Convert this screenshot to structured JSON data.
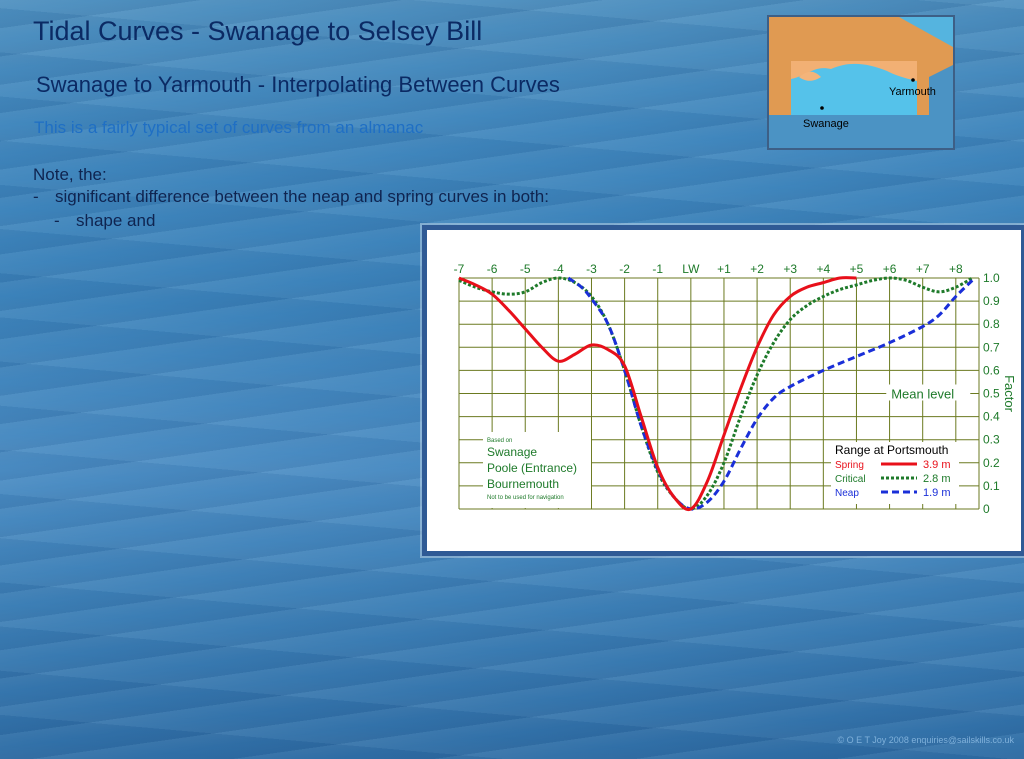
{
  "title": "Tidal Curves - Swanage to Selsey Bill",
  "subtitle": "Swanage to Yarmouth - Interpolating Between Curves",
  "lead": "This is a fairly typical set of curves from an almanac",
  "note": "Note, the:",
  "bullets": [
    {
      "dash": "-",
      "text": "significant difference between the neap and spring curves in both:"
    },
    {
      "dash": "-",
      "text": "shape and"
    }
  ],
  "map": {
    "labels": {
      "yarmouth": "Yarmouth",
      "swanage": "Swanage"
    }
  },
  "copyright": "© O E T Joy 2008 enquiries@sailskills.co.uk",
  "chart_data": {
    "type": "line",
    "x_ticks": [
      "-7",
      "-6",
      "-5",
      "-4",
      "-3",
      "-2",
      "-1",
      "LW",
      "+1",
      "+2",
      "+3",
      "+4",
      "+5",
      "+6",
      "+7",
      "+8"
    ],
    "xlim": [
      -7,
      8.7
    ],
    "ylim": [
      0,
      1.0
    ],
    "y_ticks": [
      "0",
      "0.1",
      "0.2",
      "0.3",
      "0.4",
      "0.5",
      "0.6",
      "0.7",
      "0.8",
      "0.9",
      "1.0"
    ],
    "ylabel": "Factor",
    "mean_level_label": "Mean level",
    "grid": true,
    "place_box": {
      "based_on": "Based on",
      "places": [
        "Swanage",
        "Poole (Entrance)",
        "Bournemouth"
      ],
      "disclaimer": "Not to be used for navigation"
    },
    "legend": {
      "title": "Range at Portsmouth",
      "placement": "bottom-right",
      "entries": [
        {
          "name": "Spring",
          "range": "3.9 m",
          "color": "#e8101a",
          "style": "solid"
        },
        {
          "name": "Critical",
          "range": "2.8 m",
          "color": "#1e7a2a",
          "style": "dotted"
        },
        {
          "name": "Neap",
          "range": "1.9 m",
          "color": "#1a2fd8",
          "style": "dashed"
        }
      ]
    },
    "series": [
      {
        "name": "Spring",
        "color": "#e8101a",
        "style": "solid",
        "x": [
          -7,
          -6.5,
          -6,
          -5.5,
          -5,
          -4.5,
          -4,
          -3.5,
          -3,
          -2.5,
          -2,
          -1.5,
          -1,
          -0.5,
          0,
          0.5,
          1,
          1.5,
          2,
          2.5,
          3,
          3.5,
          4,
          4.5,
          5
        ],
        "y": [
          1.0,
          0.97,
          0.93,
          0.86,
          0.78,
          0.7,
          0.64,
          0.67,
          0.71,
          0.69,
          0.62,
          0.4,
          0.18,
          0.05,
          0.0,
          0.12,
          0.32,
          0.52,
          0.7,
          0.84,
          0.92,
          0.96,
          0.98,
          1.0,
          1.0
        ]
      },
      {
        "name": "Critical",
        "color": "#1e7a2a",
        "style": "dotted",
        "x": [
          -7,
          -6.5,
          -6,
          -5.5,
          -5,
          -4.5,
          -4,
          -3.5,
          -3,
          -2.5,
          -2,
          -1.5,
          -1,
          -0.5,
          0,
          0.5,
          1,
          1.5,
          2,
          2.5,
          3,
          3.5,
          4,
          4.5,
          5,
          5.5,
          6,
          6.5,
          7,
          7.5,
          8,
          8.5
        ],
        "y": [
          0.99,
          0.96,
          0.94,
          0.93,
          0.94,
          0.98,
          1.0,
          0.98,
          0.92,
          0.8,
          0.6,
          0.36,
          0.16,
          0.05,
          0.0,
          0.06,
          0.2,
          0.4,
          0.58,
          0.72,
          0.82,
          0.88,
          0.92,
          0.95,
          0.97,
          0.99,
          1.0,
          0.99,
          0.96,
          0.94,
          0.96,
          1.0
        ]
      },
      {
        "name": "Neap",
        "color": "#1a2fd8",
        "style": "dashed",
        "x": [
          -3.7,
          -3.3,
          -3,
          -2.5,
          -2,
          -1.5,
          -1,
          -0.5,
          0,
          0.5,
          1,
          1.5,
          2,
          2.5,
          3,
          4,
          5,
          6,
          7,
          7.5,
          8,
          8.5
        ],
        "y": [
          1.0,
          0.96,
          0.91,
          0.8,
          0.6,
          0.36,
          0.17,
          0.05,
          0.0,
          0.03,
          0.12,
          0.26,
          0.39,
          0.48,
          0.53,
          0.6,
          0.66,
          0.72,
          0.79,
          0.84,
          0.92,
          0.99
        ]
      }
    ]
  }
}
